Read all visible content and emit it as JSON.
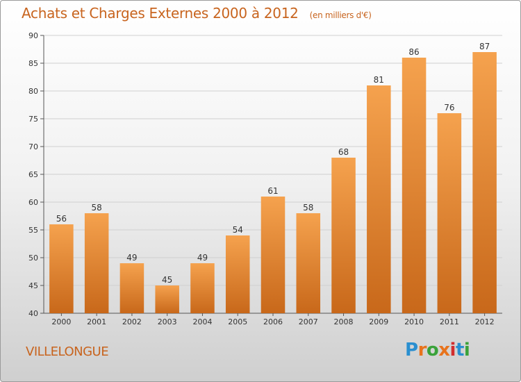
{
  "header": {
    "title": "Achats et Charges Externes 2000 à 2012",
    "unit": "(en milliers d'€)"
  },
  "footer": {
    "place": "VILLELONGUE",
    "logo": {
      "letters": [
        "P",
        "r",
        "o",
        "x",
        "i",
        "t",
        "i"
      ],
      "colors": [
        "#2a8fd0",
        "#e8731c",
        "#3aa23a",
        "#e8731c",
        "#d12e2e",
        "#2a8fd0",
        "#3aa23a"
      ]
    }
  },
  "colors": {
    "title": "#c8641e",
    "bar_top": "#f5a24e",
    "bar_bottom": "#c8681a",
    "grid": "#cfcfcf",
    "axis": "#555555"
  },
  "chart_data": {
    "type": "bar",
    "title": "Achats et Charges Externes 2000 à 2012",
    "subtitle": "(en milliers d'€)",
    "categories": [
      "2000",
      "2001",
      "2002",
      "2003",
      "2004",
      "2005",
      "2006",
      "2007",
      "2008",
      "2009",
      "2010",
      "2011",
      "2012"
    ],
    "values": [
      56,
      58,
      49,
      45,
      49,
      54,
      61,
      58,
      68,
      81,
      86,
      76,
      87
    ],
    "ylim": [
      40,
      90
    ],
    "yticks": [
      40,
      45,
      50,
      55,
      60,
      65,
      70,
      75,
      80,
      85,
      90
    ],
    "grid": true,
    "data_labels": true
  }
}
